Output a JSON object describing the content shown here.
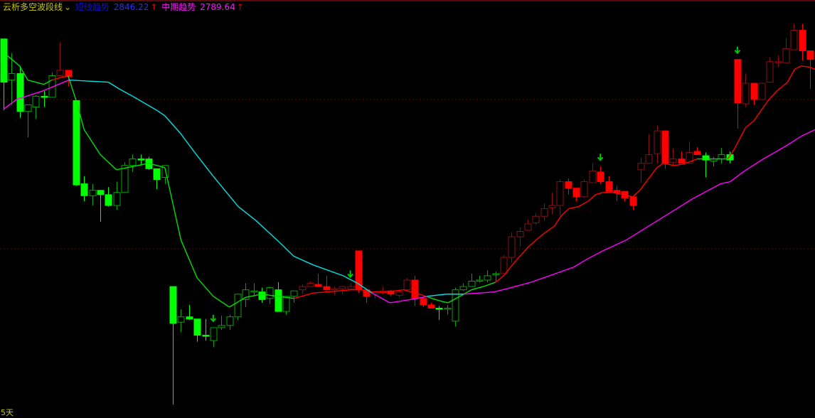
{
  "header": {
    "indicator_name": "云析多空波段线",
    "short_label": "短线趋势",
    "short_value": "2846.22",
    "short_arrow": "↑",
    "mid_label": "中期趋势",
    "mid_value": "2789.64",
    "mid_arrow": "↑",
    "dropdown_icon": "chevron-down-icon"
  },
  "footer": {
    "period": "5天"
  },
  "colors": {
    "background": "#000000",
    "up_green_hollow": "#00a800",
    "down_green_filled": "#00ff00",
    "up_red_hollow": "#8c1010",
    "down_red_filled": "#ff0000",
    "short_line_green": "#00e000",
    "short_line_red": "#ff0000",
    "mid_line_above": "#ff00ff",
    "mid_line_below": "#00e0e0",
    "signal_arrow": "#00c800",
    "gridline": "#6a0000"
  },
  "chart_data": {
    "type": "candlestick",
    "title": "",
    "ylim": [
      2532,
      2910
    ],
    "grid": "dashed horizontal",
    "gridlines": [
      2818,
      2680
    ],
    "candles_ohlc": [
      [
        2874,
        2874,
        2808,
        2834
      ],
      [
        2836,
        2861,
        2813,
        2842
      ],
      [
        2842,
        2849,
        2801,
        2807
      ],
      [
        2807,
        2813,
        2783,
        2813
      ],
      [
        2811,
        2822,
        2800,
        2821
      ],
      [
        2821,
        2826,
        2811,
        2820
      ],
      [
        2820,
        2843,
        2820,
        2840
      ],
      [
        2840,
        2871,
        2840,
        2845
      ],
      [
        2845,
        2845,
        2830,
        2839
      ],
      [
        2817,
        2817,
        2738,
        2739
      ],
      [
        2740,
        2747,
        2724,
        2729
      ],
      [
        2729,
        2740,
        2720,
        2734
      ],
      [
        2734,
        2734,
        2705,
        2730
      ],
      [
        2730,
        2737,
        2719,
        2720
      ],
      [
        2720,
        2742,
        2716,
        2732
      ],
      [
        2732,
        2760,
        2732,
        2757
      ],
      [
        2757,
        2767,
        2751,
        2763
      ],
      [
        2763,
        2767,
        2757,
        2762
      ],
      [
        2763,
        2765,
        2753,
        2754
      ],
      [
        2754,
        2754,
        2735,
        2744
      ],
      [
        2746,
        2757,
        2740,
        2757
      ],
      [
        2645,
        2645,
        2536,
        2611
      ],
      [
        2612,
        2624,
        2603,
        2617
      ],
      [
        2617,
        2628,
        2614,
        2615
      ],
      [
        2615,
        2615,
        2594,
        2600
      ],
      [
        2600,
        2615,
        2595,
        2599
      ],
      [
        2595,
        2607,
        2589,
        2607
      ],
      [
        2607,
        2618,
        2605,
        2609
      ],
      [
        2609,
        2619,
        2605,
        2617
      ],
      [
        2617,
        2638,
        2614,
        2638
      ],
      [
        2633,
        2648,
        2626,
        2642
      ],
      [
        2640,
        2648,
        2636,
        2641
      ],
      [
        2640,
        2644,
        2630,
        2633
      ],
      [
        2634,
        2645,
        2629,
        2644
      ],
      [
        2642,
        2649,
        2622,
        2622
      ],
      [
        2622,
        2636,
        2619,
        2636
      ],
      [
        2636,
        2641,
        2630,
        2641
      ],
      [
        2642,
        2647,
        2638,
        2645
      ],
      [
        2645,
        2650,
        2645,
        2648
      ],
      [
        2647,
        2657,
        2645,
        2645
      ],
      [
        2645,
        2655,
        2641,
        2642
      ],
      [
        2642,
        2645,
        2637,
        2643
      ],
      [
        2643,
        2645,
        2638,
        2645
      ],
      [
        2643,
        2648,
        2642,
        2645
      ],
      [
        2678,
        2678,
        2639,
        2642
      ],
      [
        2642,
        2642,
        2630,
        2636
      ],
      [
        2638,
        2640,
        2634,
        2640
      ],
      [
        2639,
        2645,
        2638,
        2641
      ],
      [
        2641,
        2642,
        2636,
        2638
      ],
      [
        2637,
        2641,
        2635,
        2640
      ],
      [
        2642,
        2653,
        2640,
        2651
      ],
      [
        2651,
        2655,
        2627,
        2634
      ],
      [
        2634,
        2636,
        2626,
        2628
      ],
      [
        2628,
        2630,
        2625,
        2625
      ],
      [
        2625,
        2627,
        2614,
        2624
      ],
      [
        2624,
        2628,
        2619,
        2625
      ],
      [
        2613,
        2644,
        2608,
        2642
      ],
      [
        2642,
        2648,
        2641,
        2645
      ],
      [
        2645,
        2657,
        2645,
        2650
      ],
      [
        2650,
        2655,
        2649,
        2651
      ],
      [
        2651,
        2660,
        2649,
        2655
      ],
      [
        2656,
        2659,
        2650,
        2657
      ],
      [
        2657,
        2674,
        2657,
        2672
      ],
      [
        2672,
        2695,
        2667,
        2691
      ],
      [
        2691,
        2700,
        2682,
        2696
      ],
      [
        2697,
        2707,
        2697,
        2703
      ],
      [
        2704,
        2713,
        2702,
        2710
      ],
      [
        2710,
        2722,
        2706,
        2717
      ],
      [
        2718,
        2732,
        2712,
        2720
      ],
      [
        2720,
        2744,
        2711,
        2742
      ],
      [
        2742,
        2745,
        2730,
        2736
      ],
      [
        2736,
        2736,
        2724,
        2728
      ],
      [
        2728,
        2744,
        2727,
        2742
      ],
      [
        2741,
        2759,
        2741,
        2752
      ],
      [
        2751,
        2756,
        2740,
        2742
      ],
      [
        2742,
        2747,
        2733,
        2733
      ],
      [
        2734,
        2738,
        2724,
        2732
      ],
      [
        2733,
        2733,
        2724,
        2727
      ],
      [
        2728,
        2728,
        2716,
        2720
      ],
      [
        2753,
        2764,
        2741,
        2759
      ],
      [
        2759,
        2786,
        2759,
        2767
      ],
      [
        2768,
        2794,
        2759,
        2789
      ],
      [
        2789,
        2789,
        2754,
        2759
      ],
      [
        2760,
        2773,
        2757,
        2763
      ],
      [
        2763,
        2770,
        2759,
        2759
      ],
      [
        2759,
        2779,
        2759,
        2769
      ],
      [
        2770,
        2774,
        2767,
        2767
      ],
      [
        2766,
        2769,
        2746,
        2762
      ],
      [
        2761,
        2765,
        2756,
        2763
      ],
      [
        2763,
        2773,
        2759,
        2767
      ],
      [
        2767,
        2770,
        2759,
        2762
      ],
      [
        2855,
        2855,
        2791,
        2815
      ],
      [
        2814,
        2842,
        2811,
        2833
      ],
      [
        2833,
        2833,
        2813,
        2818
      ],
      [
        2818,
        2833,
        2818,
        2833
      ],
      [
        2834,
        2857,
        2834,
        2853
      ],
      [
        2853,
        2859,
        2848,
        2853
      ],
      [
        2852,
        2875,
        2852,
        2865
      ],
      [
        2864,
        2888,
        2864,
        2882
      ],
      [
        2882,
        2888,
        2854,
        2863
      ],
      [
        2863,
        2863,
        2828,
        2855
      ]
    ],
    "trend": "gggggggrrggggggggggggggggggggggggggggrrrrrrrrrrrrrrrrrggggggggrrrrrrrrrrrrrrrrrrrrrrrrrggggrrrrrrrrrr",
    "signal_arrows_at": [
      26,
      43,
      74,
      91
    ],
    "short_trend_line": [
      [
        0.4,
        2859
      ],
      [
        2,
        2849
      ],
      [
        3,
        2836
      ],
      [
        5,
        2832
      ],
      [
        6,
        2836
      ],
      [
        8,
        2840
      ],
      [
        9,
        2817
      ],
      [
        10,
        2790
      ],
      [
        12,
        2767
      ],
      [
        14,
        2753
      ],
      [
        16,
        2756
      ],
      [
        18,
        2759
      ],
      [
        20,
        2755
      ],
      [
        22,
        2688
      ],
      [
        24,
        2653
      ],
      [
        26,
        2636
      ],
      [
        28,
        2626
      ],
      [
        30,
        2635
      ],
      [
        32,
        2638
      ],
      [
        34,
        2636
      ],
      [
        36,
        2634
      ],
      [
        38.4,
        2639
      ],
      [
        40,
        2640
      ],
      [
        41.6,
        2641
      ],
      [
        43,
        2642
      ],
      [
        44.3,
        2642
      ],
      [
        45.7,
        2640
      ],
      [
        47.4,
        2640
      ],
      [
        49.6,
        2642
      ],
      [
        51.6,
        2638
      ],
      [
        52.7,
        2635
      ],
      [
        54,
        2632
      ],
      [
        55.1,
        2630
      ],
      [
        56.6,
        2636
      ],
      [
        58,
        2642
      ],
      [
        59.5,
        2645
      ],
      [
        61,
        2649
      ],
      [
        62,
        2655
      ],
      [
        63.3,
        2667
      ],
      [
        65.1,
        2682
      ],
      [
        66.8,
        2693
      ],
      [
        68.3,
        2701
      ],
      [
        69.2,
        2711
      ],
      [
        70.1,
        2717
      ],
      [
        71.3,
        2719
      ],
      [
        72.5,
        2724
      ],
      [
        73.4,
        2730
      ],
      [
        74.3,
        2732
      ],
      [
        75.4,
        2732
      ],
      [
        76.9,
        2730
      ],
      [
        78,
        2728
      ],
      [
        78.9,
        2734
      ],
      [
        81,
        2755
      ],
      [
        81.8,
        2759
      ],
      [
        83.1,
        2757
      ],
      [
        84.2,
        2758
      ],
      [
        86,
        2763
      ],
      [
        87.7,
        2763
      ],
      [
        89.8,
        2763
      ],
      [
        90.6,
        2772
      ],
      [
        92,
        2792
      ],
      [
        93,
        2798
      ],
      [
        94.8,
        2817
      ],
      [
        95.9,
        2826
      ],
      [
        97.2,
        2834
      ],
      [
        98.1,
        2846
      ],
      [
        98.9,
        2849
      ],
      [
        99.9,
        2848
      ],
      [
        100.6,
        2846
      ]
    ],
    "mid_trend_line": [
      [
        0,
        2809
      ],
      [
        1.6,
        2818
      ],
      [
        4.9,
        2826
      ],
      [
        8.1,
        2836
      ],
      [
        13,
        2834
      ],
      [
        14.3,
        2828
      ],
      [
        16,
        2821
      ],
      [
        19,
        2808
      ],
      [
        20,
        2803
      ],
      [
        21.9,
        2787
      ],
      [
        23.6,
        2770
      ],
      [
        26,
        2747
      ],
      [
        29.1,
        2719
      ],
      [
        31.3,
        2706
      ],
      [
        34.2,
        2686
      ],
      [
        36,
        2673
      ],
      [
        38.4,
        2665
      ],
      [
        41,
        2658
      ],
      [
        42.1,
        2655
      ],
      [
        43.9,
        2648
      ],
      [
        45.7,
        2639
      ],
      [
        47.9,
        2630
      ],
      [
        49.6,
        2632
      ],
      [
        51.3,
        2634
      ],
      [
        52.5,
        2636
      ],
      [
        54.9,
        2638
      ],
      [
        57.1,
        2638
      ],
      [
        60.8,
        2640
      ],
      [
        62.4,
        2643
      ],
      [
        65.4,
        2649
      ],
      [
        67.7,
        2655
      ],
      [
        70.7,
        2663
      ],
      [
        72.5,
        2671
      ],
      [
        74.3,
        2678
      ],
      [
        77.2,
        2688
      ],
      [
        82.6,
        2713
      ],
      [
        85.4,
        2726
      ],
      [
        88.9,
        2740
      ],
      [
        90.1,
        2742
      ],
      [
        91.9,
        2752
      ],
      [
        94.2,
        2763
      ],
      [
        96.8,
        2774
      ],
      [
        98.9,
        2784
      ],
      [
        100.6,
        2790
      ]
    ]
  }
}
